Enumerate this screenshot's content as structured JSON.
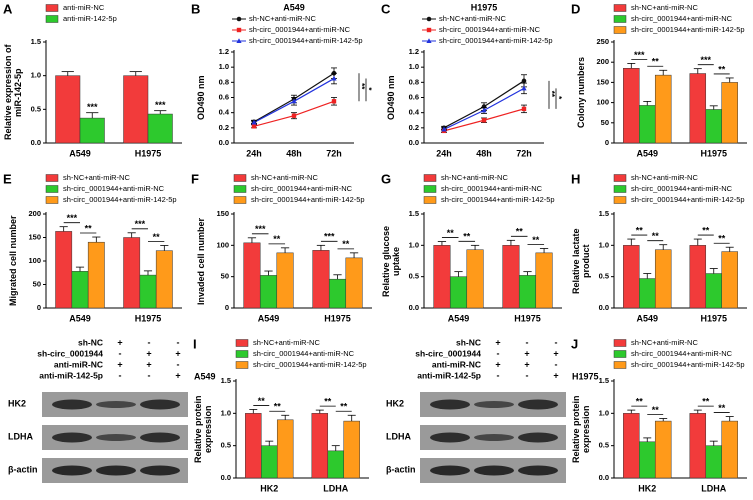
{
  "chart_data": [
    {
      "panel": "A",
      "type": "bar",
      "ylabel": "Relative expression of miR-142-5p",
      "categories": [
        "A549",
        "H1975"
      ],
      "series": [
        {
          "name": "anti-miR-NC",
          "color": "#f23b3b",
          "values": [
            1.0,
            1.0
          ],
          "errors": [
            0.06,
            0.06
          ]
        },
        {
          "name": "anti-miR-142-5p",
          "color": "#2dc92d",
          "values": [
            0.37,
            0.43
          ],
          "errors": [
            0.08,
            0.05
          ]
        }
      ],
      "ylim": [
        0,
        1.5
      ],
      "yticks": [
        {
          "value": 0,
          "label": "0.0"
        },
        0.5,
        {
          "value": 1,
          "label": "1.0"
        },
        1.5
      ],
      "annotations": [
        "***",
        "***"
      ]
    },
    {
      "panel": "B",
      "type": "line",
      "title": "A549",
      "ylabel": "OD490 nm",
      "categories": [
        "24h",
        "48h",
        "72h"
      ],
      "series": [
        {
          "name": "sh-NC+anti-miR-NC",
          "color": "#111111",
          "marker": "circle",
          "values": [
            0.28,
            0.58,
            0.92
          ],
          "errors": [
            0.02,
            0.05,
            0.07
          ]
        },
        {
          "name": "sh-circ_0001944+anti-miR-NC",
          "color": "#ee2222",
          "marker": "square",
          "values": [
            0.22,
            0.36,
            0.55
          ],
          "errors": [
            0.02,
            0.04,
            0.05
          ]
        },
        {
          "name": "sh-circ_0001944+anti-miR-142-5p",
          "color": "#2233dd",
          "marker": "triangle",
          "values": [
            0.27,
            0.55,
            0.85
          ],
          "errors": [
            0.02,
            0.05,
            0.07
          ]
        }
      ],
      "ylim": [
        0,
        1.2
      ],
      "yticks": [
        {
          "value": 0,
          "label": "0.0"
        },
        0.2,
        0.4,
        0.6,
        0.8,
        {
          "value": 1,
          "label": "1.0"
        },
        1.2
      ],
      "annotations": [
        "**",
        "*"
      ]
    },
    {
      "panel": "C",
      "type": "line",
      "title": "H1975",
      "ylabel": "OD490 nm",
      "categories": [
        "24h",
        "48h",
        "72h"
      ],
      "series": [
        {
          "name": "sh-NC+anti-miR-NC",
          "color": "#111111",
          "marker": "circle",
          "values": [
            0.2,
            0.48,
            0.82
          ],
          "errors": [
            0.02,
            0.05,
            0.08
          ]
        },
        {
          "name": "sh-circ_0001944+anti-miR-NC",
          "color": "#ee2222",
          "marker": "square",
          "values": [
            0.16,
            0.3,
            0.45
          ],
          "errors": [
            0.02,
            0.03,
            0.05
          ]
        },
        {
          "name": "sh-circ_0001944+anti-miR-142-5p",
          "color": "#2233dd",
          "marker": "triangle",
          "values": [
            0.18,
            0.43,
            0.72
          ],
          "errors": [
            0.02,
            0.04,
            0.07
          ]
        }
      ],
      "ylim": [
        0,
        1.2
      ],
      "yticks": [
        {
          "value": 0,
          "label": "0.0"
        },
        0.2,
        0.4,
        0.6,
        0.8,
        {
          "value": 1,
          "label": "1.0"
        },
        1.2
      ],
      "annotations": [
        "**",
        "*"
      ]
    },
    {
      "panel": "D",
      "type": "bar",
      "ylabel": "Colony numbers",
      "categories": [
        "A549",
        "H1975"
      ],
      "series": [
        {
          "name": "sh-NC+anti-miR-NC",
          "color": "#f23b3b",
          "values": [
            185,
            172
          ],
          "errors": [
            12,
            12
          ]
        },
        {
          "name": "sh-circ_0001944+anti-miR-NC",
          "color": "#2dc92d",
          "values": [
            93,
            83
          ],
          "errors": [
            10,
            9
          ]
        },
        {
          "name": "sh-circ_0001944+anti-miR-142-5p",
          "color": "#ff9a1a",
          "values": [
            168,
            150
          ],
          "errors": [
            12,
            11
          ]
        }
      ],
      "ylim": [
        0,
        250
      ],
      "yticks": [
        0,
        50,
        100,
        150,
        200,
        250
      ],
      "annotations": [
        "***",
        "**",
        "***",
        "**"
      ]
    },
    {
      "panel": "E",
      "type": "bar",
      "ylabel": "Migrated cell number",
      "categories": [
        "A549",
        "H1975"
      ],
      "series": [
        {
          "name": "sh-NC+anti-miR-NC",
          "color": "#f23b3b",
          "values": [
            163,
            150
          ],
          "errors": [
            10,
            10
          ]
        },
        {
          "name": "sh-circ_0001944+anti-miR-NC",
          "color": "#2dc92d",
          "values": [
            78,
            70
          ],
          "errors": [
            9,
            9
          ]
        },
        {
          "name": "sh-circ_0001944+anti-miR-142-5p",
          "color": "#ff9a1a",
          "values": [
            140,
            122
          ],
          "errors": [
            11,
            11
          ]
        }
      ],
      "ylim": [
        0,
        200
      ],
      "yticks": [
        0,
        50,
        100,
        150,
        200
      ],
      "annotations": [
        "***",
        "**",
        "***",
        "**"
      ]
    },
    {
      "panel": "F",
      "type": "bar",
      "ylabel": "Invaded cell number",
      "categories": [
        "A549",
        "H1975"
      ],
      "series": [
        {
          "name": "sh-NC+anti-miR-NC",
          "color": "#f23b3b",
          "values": [
            104,
            92
          ],
          "errors": [
            8,
            8
          ]
        },
        {
          "name": "sh-circ_0001944+anti-miR-NC",
          "color": "#2dc92d",
          "values": [
            52,
            46
          ],
          "errors": [
            7,
            7
          ]
        },
        {
          "name": "sh-circ_0001944+anti-miR-142-5p",
          "color": "#ff9a1a",
          "values": [
            88,
            80
          ],
          "errors": [
            8,
            8
          ]
        }
      ],
      "ylim": [
        0,
        150
      ],
      "yticks": [
        0,
        50,
        100,
        150
      ],
      "annotations": [
        "***",
        "**",
        "***",
        "**"
      ]
    },
    {
      "panel": "G",
      "type": "bar",
      "ylabel": "Relative glucose uptake",
      "categories": [
        "A549",
        "H1975"
      ],
      "series": [
        {
          "name": "sh-NC+anti-miR-NC",
          "color": "#f23b3b",
          "values": [
            1.0,
            1.0
          ],
          "errors": [
            0.06,
            0.08
          ]
        },
        {
          "name": "sh-circ_0001944+anti-miR-NC",
          "color": "#2dc92d",
          "values": [
            0.5,
            0.52
          ],
          "errors": [
            0.08,
            0.06
          ]
        },
        {
          "name": "sh-circ_0001944+anti-miR-142-5p",
          "color": "#ff9a1a",
          "values": [
            0.93,
            0.88
          ],
          "errors": [
            0.07,
            0.07
          ]
        }
      ],
      "ylim": [
        0,
        1.5
      ],
      "yticks": [
        {
          "value": 0,
          "label": "0.0"
        },
        0.5,
        {
          "value": 1,
          "label": "1.0"
        },
        1.5
      ],
      "annotations": [
        "**",
        "**",
        "**",
        "**"
      ]
    },
    {
      "panel": "H",
      "type": "bar",
      "ylabel": "Relative lactate product",
      "categories": [
        "A549",
        "H1975"
      ],
      "series": [
        {
          "name": "sh-NC+anti-miR-NC",
          "color": "#f23b3b",
          "values": [
            1.0,
            1.0
          ],
          "errors": [
            0.1,
            0.1
          ]
        },
        {
          "name": "sh-circ_0001944+anti-miR-NC",
          "color": "#2dc92d",
          "values": [
            0.47,
            0.55
          ],
          "errors": [
            0.08,
            0.08
          ]
        },
        {
          "name": "sh-circ_0001944+anti-miR-142-5p",
          "color": "#ff9a1a",
          "values": [
            0.93,
            0.9
          ],
          "errors": [
            0.08,
            0.07
          ]
        }
      ],
      "ylim": [
        0,
        1.5
      ],
      "yticks": [
        {
          "value": 0,
          "label": "0.0"
        },
        0.5,
        {
          "value": 1,
          "label": "1.0"
        },
        1.5
      ],
      "annotations": [
        "**",
        "**",
        "**",
        "**"
      ]
    },
    {
      "panel": "I",
      "type": "bar",
      "title": "A549",
      "ylabel": "Relative protein expression",
      "categories": [
        "HK2",
        "LDHA"
      ],
      "series": [
        {
          "name": "sh-NC+anti-miR-NC",
          "color": "#f23b3b",
          "values": [
            1.0,
            1.0
          ],
          "errors": [
            0.06,
            0.05
          ]
        },
        {
          "name": "sh-circ_0001944+anti-miR-NC",
          "color": "#2dc92d",
          "values": [
            0.5,
            0.42
          ],
          "errors": [
            0.07,
            0.08
          ]
        },
        {
          "name": "sh-circ_0001944+anti-miR-142-5p",
          "color": "#ff9a1a",
          "values": [
            0.9,
            0.88
          ],
          "errors": [
            0.07,
            0.09
          ]
        }
      ],
      "ylim": [
        0,
        1.5
      ],
      "yticks": [
        {
          "value": 0,
          "label": "0.0"
        },
        0.5,
        {
          "value": 1,
          "label": "1.0"
        },
        1.5
      ],
      "annotations": [
        "**",
        "**",
        "**",
        "**"
      ]
    },
    {
      "panel": "J",
      "type": "bar",
      "title": "H1975",
      "ylabel": "Relative protein expression",
      "categories": [
        "HK2",
        "LDHA"
      ],
      "series": [
        {
          "name": "sh-NC+anti-miR-NC",
          "color": "#f23b3b",
          "values": [
            1.0,
            1.0
          ],
          "errors": [
            0.05,
            0.05
          ]
        },
        {
          "name": "sh-circ_0001944+anti-miR-NC",
          "color": "#2dc92d",
          "values": [
            0.56,
            0.5
          ],
          "errors": [
            0.06,
            0.07
          ]
        },
        {
          "name": "sh-circ_0001944+anti-miR-142-5p",
          "color": "#ff9a1a",
          "values": [
            0.88,
            0.88
          ],
          "errors": [
            0.04,
            0.07
          ]
        }
      ],
      "ylim": [
        0,
        1.5
      ],
      "yticks": [
        {
          "value": 0,
          "label": "0.0"
        },
        0.5,
        {
          "value": 1,
          "label": "1.0"
        },
        1.5
      ],
      "annotations": [
        "**",
        "**",
        "**",
        "**"
      ]
    }
  ],
  "blots": [
    {
      "rows": [
        {
          "label": "sh-NC",
          "signs": [
            "+",
            "-",
            "-"
          ]
        },
        {
          "label": "sh-circ_0001944",
          "signs": [
            "-",
            "+",
            "+"
          ]
        },
        {
          "label": "anti-miR-NC",
          "signs": [
            "+",
            "+",
            "-"
          ]
        },
        {
          "label": "anti-miR-142-5p",
          "signs": [
            "-",
            "-",
            "+"
          ]
        }
      ],
      "bands": [
        "HK2",
        "LDHA",
        "β-actin"
      ]
    },
    {
      "rows": [
        {
          "label": "sh-NC",
          "signs": [
            "+",
            "-",
            "-"
          ]
        },
        {
          "label": "sh-circ_0001944",
          "signs": [
            "-",
            "+",
            "+"
          ]
        },
        {
          "label": "anti-miR-NC",
          "signs": [
            "+",
            "+",
            "-"
          ]
        },
        {
          "label": "anti-miR-142-5p",
          "signs": [
            "-",
            "-",
            "+"
          ]
        }
      ],
      "bands": [
        "HK2",
        "LDHA",
        "β-actin"
      ]
    }
  ]
}
